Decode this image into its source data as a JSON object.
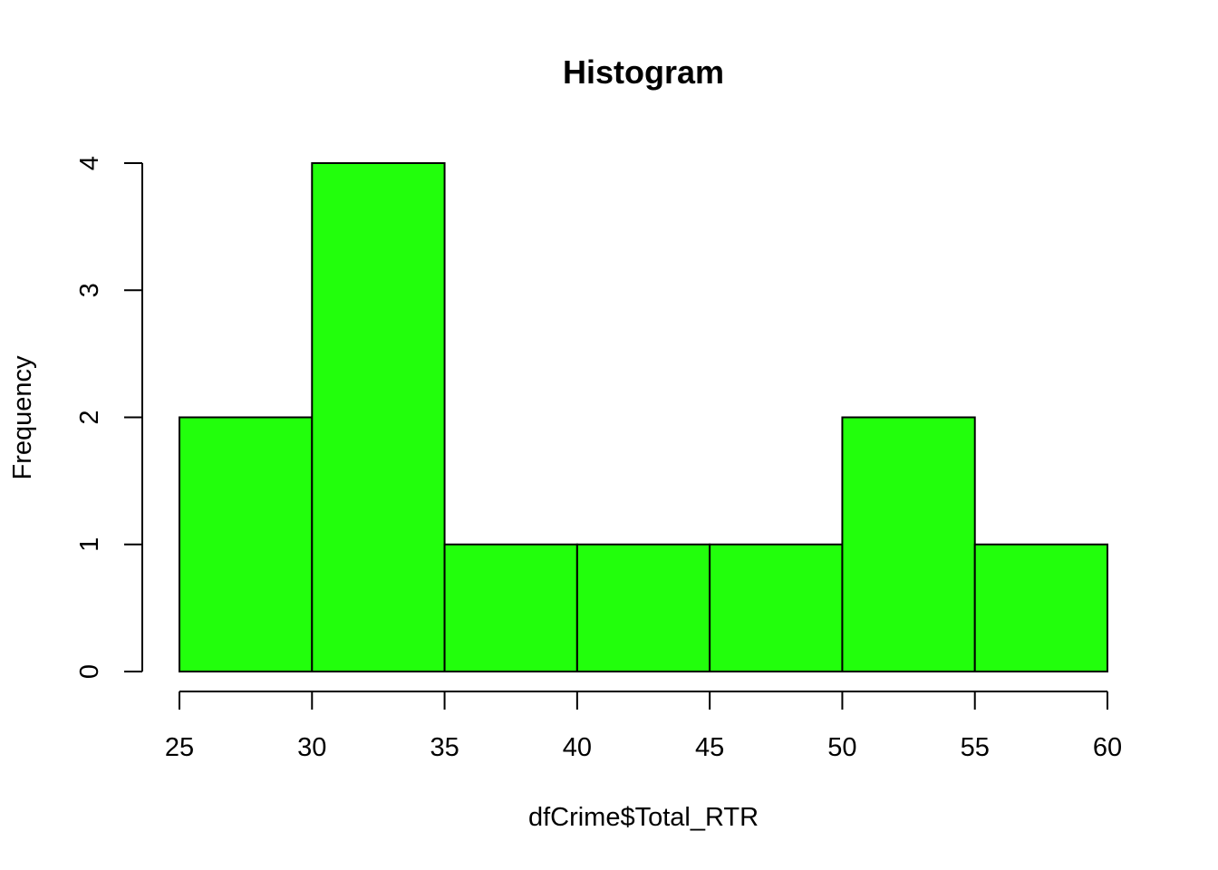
{
  "chart_data": {
    "type": "bar",
    "title": "Histogram",
    "xlabel": "dfCrime$Total_RTR",
    "ylabel": "Frequency",
    "bins": [
      {
        "x0": 25,
        "x1": 30,
        "count": 2
      },
      {
        "x0": 30,
        "x1": 35,
        "count": 4
      },
      {
        "x0": 35,
        "x1": 40,
        "count": 1
      },
      {
        "x0": 40,
        "x1": 45,
        "count": 1
      },
      {
        "x0": 45,
        "x1": 50,
        "count": 1
      },
      {
        "x0": 50,
        "x1": 55,
        "count": 2
      },
      {
        "x0": 55,
        "x1": 60,
        "count": 1
      }
    ],
    "x_ticks": [
      "25",
      "30",
      "35",
      "40",
      "45",
      "50",
      "55",
      "60"
    ],
    "y_ticks": [
      "0",
      "1",
      "2",
      "3",
      "4"
    ],
    "xlim": [
      25,
      60
    ],
    "ylim": [
      0,
      4
    ],
    "bar_color": "#22ff0c",
    "grid": false
  }
}
